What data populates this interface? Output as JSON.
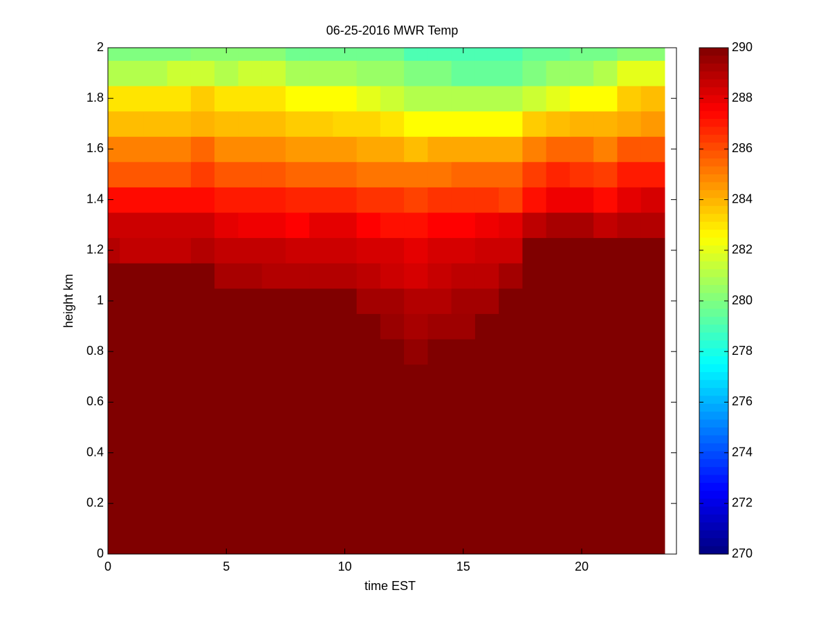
{
  "chart_data": {
    "type": "heatmap",
    "title": "06-25-2016 MWR Temp",
    "xlabel": "time EST",
    "ylabel": "height km",
    "x": [
      0,
      1,
      2,
      3,
      4,
      5,
      6,
      7,
      8,
      9,
      10,
      11,
      12,
      13,
      14,
      15,
      16,
      17,
      18,
      19,
      20,
      21,
      22,
      23
    ],
    "y": [
      0,
      0.1,
      0.2,
      0.3,
      0.4,
      0.5,
      0.6,
      0.7,
      0.8,
      0.9,
      1,
      1.1,
      1.2,
      1.3,
      1.4,
      1.5,
      1.6,
      1.7,
      1.8,
      1.9,
      2
    ],
    "z": [
      [
        290,
        290,
        290,
        290,
        290,
        290,
        290,
        290,
        290,
        290,
        290,
        290,
        290,
        290,
        290,
        290,
        290,
        290,
        290,
        290,
        290,
        290,
        290,
        290
      ],
      [
        290,
        290,
        290,
        290,
        290,
        290,
        290,
        290,
        290,
        290,
        290,
        290,
        290,
        290,
        290,
        290,
        290,
        290,
        290,
        290,
        290,
        290,
        290,
        290
      ],
      [
        290,
        290,
        290,
        290,
        290,
        290,
        290,
        290,
        290,
        290,
        290,
        290,
        290,
        290,
        290,
        290,
        290,
        290,
        290,
        290,
        290,
        290,
        290,
        290
      ],
      [
        290,
        290,
        290,
        290,
        290,
        290,
        290,
        290,
        290,
        290,
        290,
        290,
        290,
        290,
        290,
        290,
        290,
        290,
        290,
        290,
        290,
        290,
        290,
        290
      ],
      [
        290,
        290,
        290,
        290,
        290,
        290,
        290,
        290,
        290,
        290,
        290,
        290,
        290,
        290,
        290,
        290,
        290,
        290,
        290,
        290,
        290,
        290,
        290,
        290
      ],
      [
        290,
        290,
        290,
        290,
        290,
        290,
        290,
        290,
        290,
        290,
        290,
        290,
        290,
        290,
        290,
        290,
        290,
        290,
        290,
        290,
        290,
        290,
        290,
        290
      ],
      [
        290,
        290,
        290,
        290,
        290,
        290,
        290,
        290,
        290,
        290,
        290,
        290,
        290,
        290,
        290,
        290,
        290,
        290,
        290,
        290,
        290,
        290,
        290,
        290
      ],
      [
        290,
        290,
        290,
        290,
        290,
        290,
        290,
        290,
        290,
        290,
        290,
        290,
        290,
        290,
        290,
        290,
        290,
        290,
        290,
        290,
        290,
        290,
        290,
        290
      ],
      [
        290,
        290,
        290,
        290,
        290,
        290,
        290,
        290,
        290,
        290,
        290,
        290,
        290,
        289.6,
        290,
        290,
        290,
        290,
        290,
        290,
        290,
        290,
        290,
        290
      ],
      [
        290,
        290,
        290,
        290,
        290,
        290,
        290,
        290,
        290,
        290,
        290,
        290,
        289.5,
        289.2,
        289.4,
        289.4,
        290,
        290,
        290,
        290,
        290,
        290,
        290,
        290
      ],
      [
        290,
        290,
        290,
        290,
        290,
        290,
        290,
        290,
        290,
        290,
        290,
        289.3,
        289.3,
        289,
        289,
        289.3,
        289.3,
        290,
        290,
        290,
        290,
        290,
        290,
        290
      ],
      [
        290,
        290,
        290,
        290,
        290,
        289.2,
        289.2,
        289,
        289,
        289,
        289,
        288.8,
        288.5,
        288.3,
        288.6,
        288.8,
        288.8,
        289.3,
        290,
        290,
        290,
        290,
        290,
        290
      ],
      [
        289,
        288.7,
        288.7,
        288.7,
        289,
        288.7,
        288.7,
        288.7,
        288.5,
        288.5,
        288.5,
        288.3,
        288.3,
        288,
        288.3,
        288.3,
        288.5,
        288.5,
        290,
        290,
        290,
        290,
        290,
        290
      ],
      [
        288.5,
        288.5,
        288.5,
        288.5,
        288.5,
        288,
        287.8,
        287.8,
        287.5,
        288,
        288,
        287.5,
        287.2,
        287.2,
        287.5,
        287.5,
        287.8,
        288,
        288.8,
        289.2,
        289.2,
        288.7,
        289,
        289
      ],
      [
        287.3,
        287.3,
        287.3,
        287.3,
        287.3,
        287,
        287,
        287,
        286.8,
        286.8,
        286.8,
        286.5,
        286.5,
        286.2,
        286.5,
        286.5,
        286.5,
        286.2,
        287.2,
        287.8,
        287.8,
        287.3,
        288,
        288.3
      ],
      [
        285.8,
        285.8,
        285.8,
        285.8,
        286.3,
        285.8,
        285.8,
        285.8,
        285.5,
        285.5,
        285.5,
        285.2,
        285.2,
        285.2,
        285.2,
        285.5,
        285.5,
        285.5,
        286.3,
        286.8,
        286.5,
        286.3,
        287,
        287
      ],
      [
        285,
        285,
        285,
        285,
        285.5,
        284.8,
        284.8,
        284.8,
        284.5,
        284.5,
        284.5,
        284.2,
        284.2,
        283.8,
        284.2,
        284.2,
        284.2,
        284.2,
        285,
        285.5,
        285.5,
        285,
        285.8,
        285.8
      ],
      [
        283.8,
        283.8,
        283.8,
        283.8,
        284,
        283.8,
        283.8,
        283.8,
        283.5,
        283.5,
        283.3,
        283.3,
        283,
        282.5,
        282.5,
        282.5,
        282.5,
        282.5,
        283.5,
        283.8,
        284,
        284,
        284.2,
        284.5
      ],
      [
        283,
        283,
        283,
        283,
        283.5,
        283,
        283,
        283,
        282.5,
        282.5,
        282.5,
        282,
        281.5,
        281,
        281,
        281,
        281,
        281,
        281.5,
        282,
        282.5,
        282.5,
        283.5,
        283.8
      ],
      [
        281,
        281,
        281,
        281.5,
        281.5,
        281,
        281.5,
        281.5,
        280.8,
        280.8,
        280.8,
        280.5,
        280.5,
        280,
        280,
        279.5,
        279.5,
        279.5,
        280,
        280.5,
        280.5,
        281,
        282,
        282
      ],
      [
        280,
        280,
        280,
        280,
        280.2,
        280.2,
        280.2,
        280.2,
        279.7,
        279.7,
        279.7,
        279.7,
        279.7,
        279,
        279,
        279,
        279,
        279,
        279.5,
        279.5,
        279.8,
        279.8,
        280.2,
        280.2
      ]
    ],
    "xlim": [
      0,
      24
    ],
    "xticks": [
      0,
      5,
      10,
      15,
      20
    ],
    "ylim": [
      0,
      2
    ],
    "yticks": [
      0,
      0.2,
      0.4,
      0.6,
      0.8,
      1,
      1.2,
      1.4,
      1.6,
      1.8,
      2
    ],
    "clim": [
      270,
      290
    ],
    "cticks": [
      270,
      272,
      274,
      276,
      278,
      280,
      282,
      284,
      286,
      288,
      290
    ],
    "colormap": "jet"
  }
}
